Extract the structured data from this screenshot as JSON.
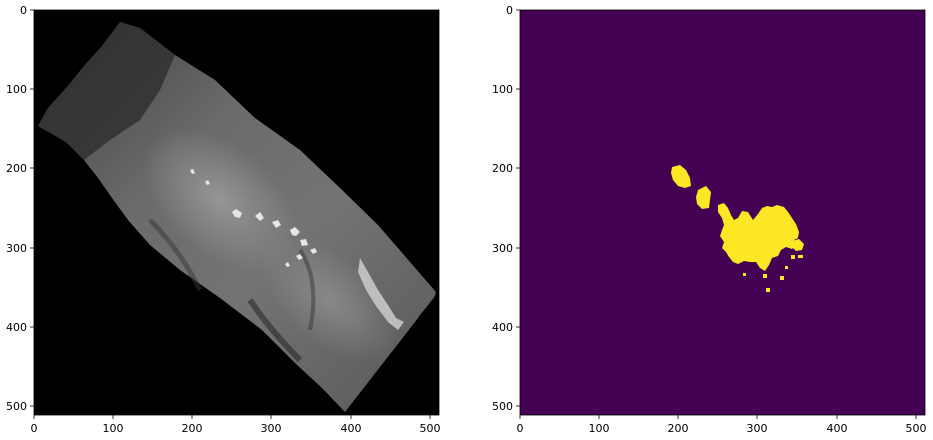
{
  "panels": [
    {
      "id": "grayscale-image",
      "image_kind": "grayscale satellite/elevation image, rotated swath on black background",
      "x_ticks": [
        "0",
        "100",
        "200",
        "300",
        "400",
        "500"
      ],
      "y_ticks": [
        "0",
        "100",
        "200",
        "300",
        "400",
        "500"
      ],
      "x_range": [
        0,
        512
      ],
      "y_range": [
        0,
        512
      ]
    },
    {
      "id": "mask-image",
      "image_kind": "binary segmentation mask",
      "colors": {
        "background": "#440154",
        "foreground": "#fde725"
      },
      "x_ticks": [
        "0",
        "100",
        "200",
        "300",
        "400",
        "500"
      ],
      "y_ticks": [
        "0",
        "100",
        "200",
        "300",
        "400",
        "500"
      ],
      "x_range": [
        0,
        512
      ],
      "y_range": [
        0,
        512
      ]
    }
  ]
}
